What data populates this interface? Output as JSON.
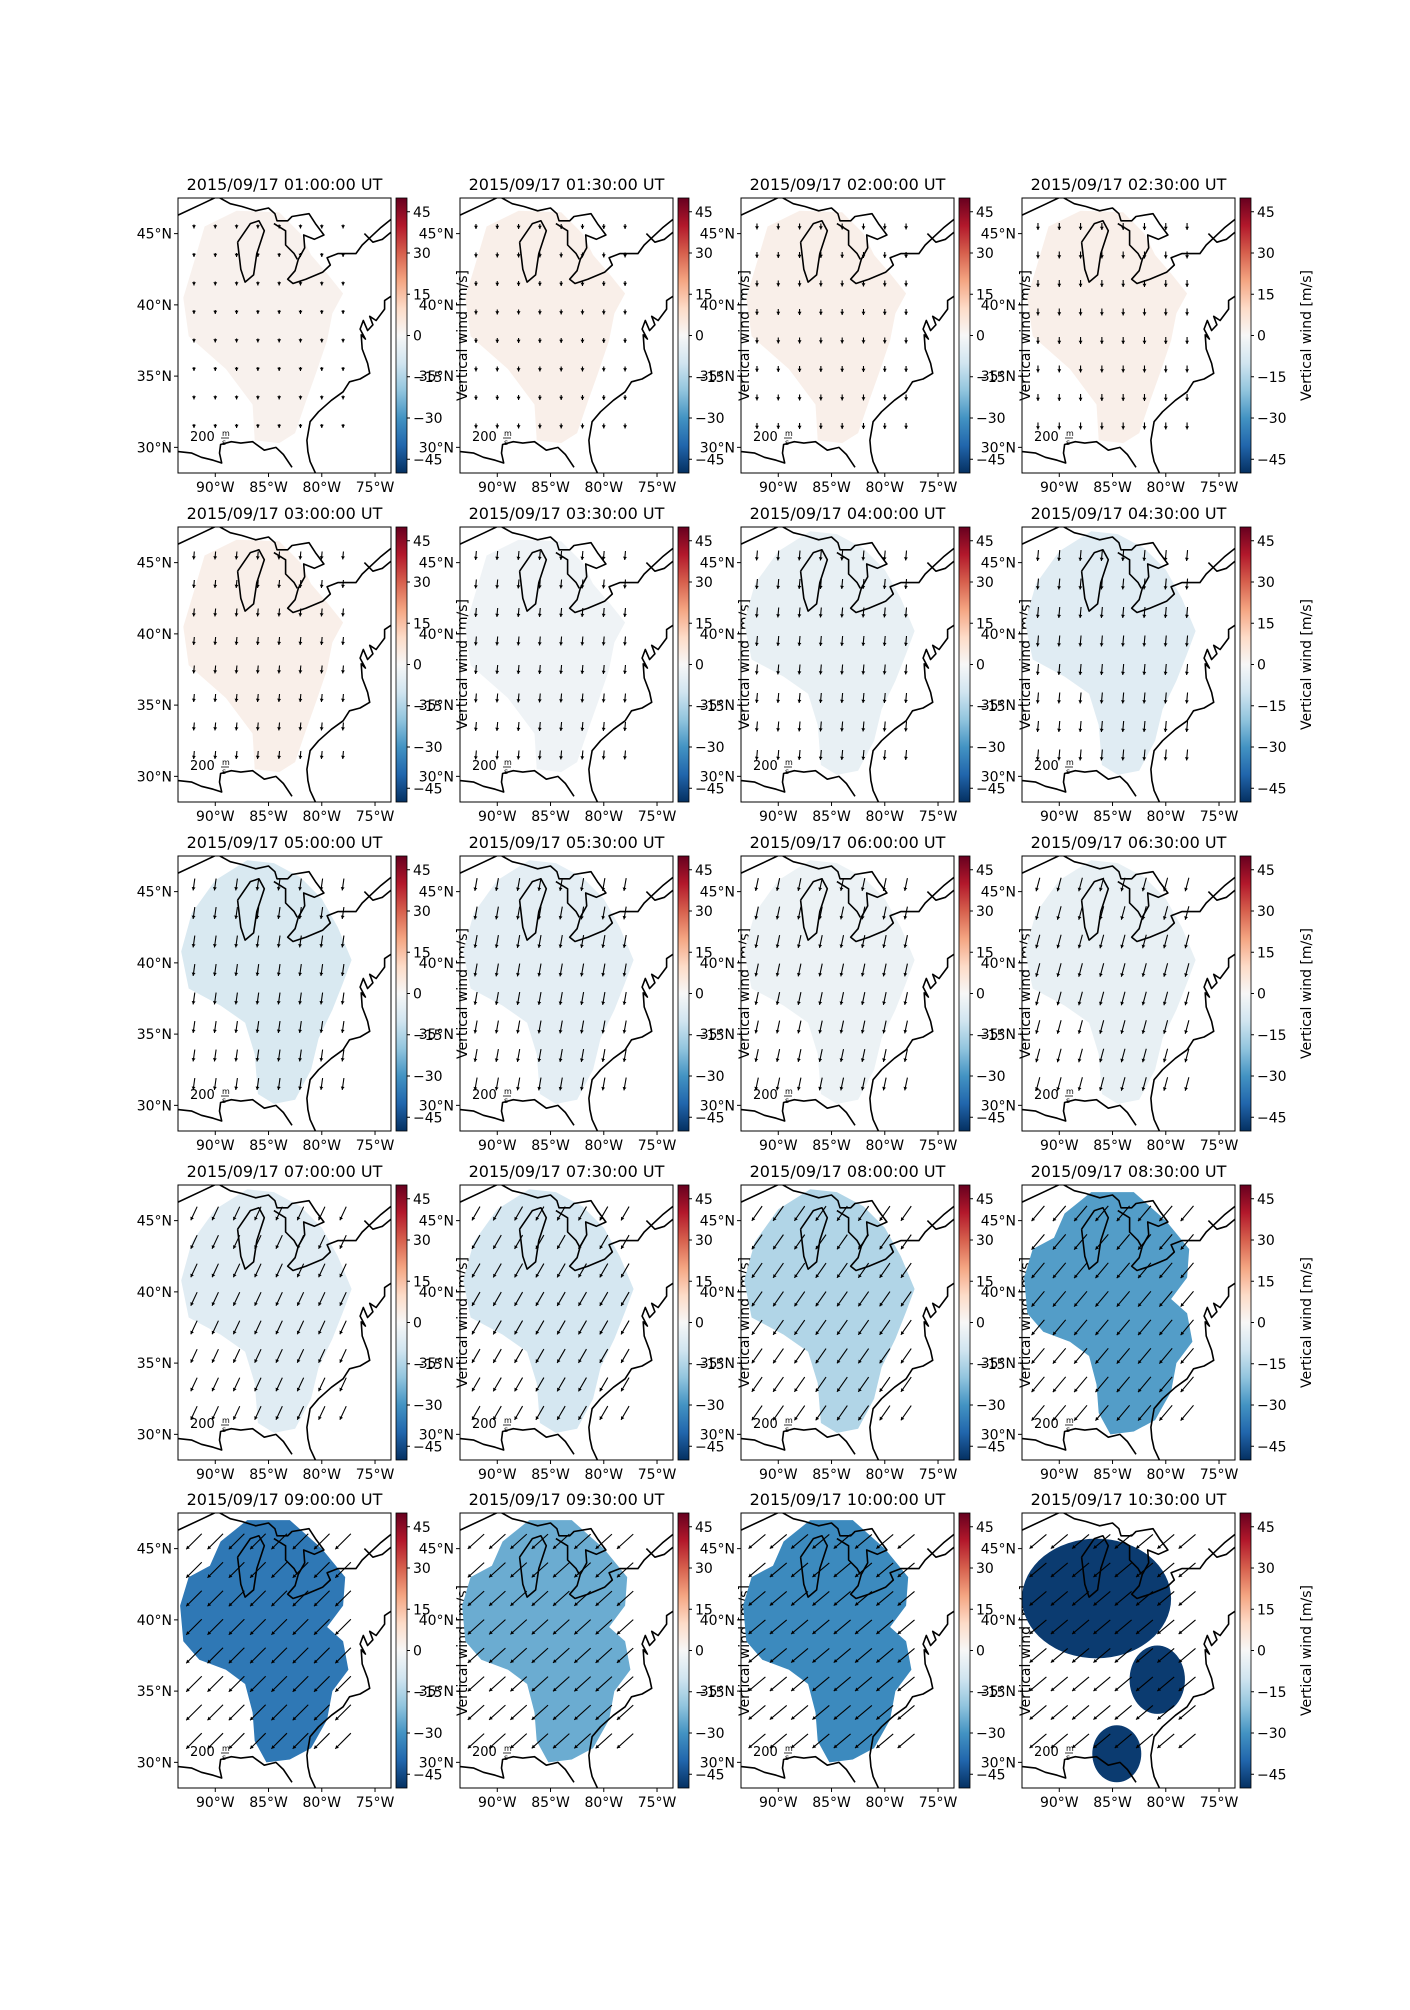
{
  "figure": {
    "colorbar": {
      "label": "Vertical wind [m/s]",
      "ticks": [
        "45",
        "30",
        "15",
        "0",
        "−15",
        "−30",
        "−45"
      ],
      "vmin": -50,
      "vmax": 50,
      "colormap": "RdBu_r"
    },
    "axes": {
      "x_ticks": [
        "90°W",
        "85°W",
        "80°W",
        "75°W"
      ],
      "y_ticks": [
        "45°N",
        "40°N",
        "35°N",
        "30°N"
      ]
    },
    "quiver_key": "200",
    "quiver_key_unit_num": "m",
    "quiver_key_unit_den": "s",
    "panels": [
      {
        "title": "2015/09/17 01:00:00 UT",
        "value": 2,
        "arrows": 4,
        "dir": 0,
        "shape": "north"
      },
      {
        "title": "2015/09/17 01:30:00 UT",
        "value": 3,
        "arrows": 5,
        "dir": 0,
        "shape": "north"
      },
      {
        "title": "2015/09/17 02:00:00 UT",
        "value": 3,
        "arrows": 6,
        "dir": 0,
        "shape": "north"
      },
      {
        "title": "2015/09/17 02:30:00 UT",
        "value": 3,
        "arrows": 7,
        "dir": 0,
        "shape": "north"
      },
      {
        "title": "2015/09/17 03:00:00 UT",
        "value": 3,
        "arrows": 8,
        "dir": 5,
        "shape": "north"
      },
      {
        "title": "2015/09/17 03:30:00 UT",
        "value": -2,
        "arrows": 9,
        "dir": 5,
        "shape": "north"
      },
      {
        "title": "2015/09/17 04:00:00 UT",
        "value": -4,
        "arrows": 10,
        "dir": 5,
        "shape": "east"
      },
      {
        "title": "2015/09/17 04:30:00 UT",
        "value": -6,
        "arrows": 11,
        "dir": 5,
        "shape": "east"
      },
      {
        "title": "2015/09/17 05:00:00 UT",
        "value": -8,
        "arrows": 12,
        "dir": 8,
        "shape": "east"
      },
      {
        "title": "2015/09/17 05:30:00 UT",
        "value": -5,
        "arrows": 13,
        "dir": 10,
        "shape": "east"
      },
      {
        "title": "2015/09/17 06:00:00 UT",
        "value": -3,
        "arrows": 13,
        "dir": 12,
        "shape": "east"
      },
      {
        "title": "2015/09/17 06:30:00 UT",
        "value": -4,
        "arrows": 14,
        "dir": 15,
        "shape": "east"
      },
      {
        "title": "2015/09/17 07:00:00 UT",
        "value": -6,
        "arrows": 15,
        "dir": 25,
        "shape": "east"
      },
      {
        "title": "2015/09/17 07:30:00 UT",
        "value": -9,
        "arrows": 16,
        "dir": 30,
        "shape": "east"
      },
      {
        "title": "2015/09/17 08:00:00 UT",
        "value": -15,
        "arrows": 18,
        "dir": 35,
        "shape": "east"
      },
      {
        "title": "2015/09/17 08:30:00 UT",
        "value": -28,
        "arrows": 20,
        "dir": 40,
        "shape": "lobe"
      },
      {
        "title": "2015/09/17 09:00:00 UT",
        "value": -36,
        "arrows": 22,
        "dir": 45,
        "shape": "lobe"
      },
      {
        "title": "2015/09/17 09:30:00 UT",
        "value": -25,
        "arrows": 22,
        "dir": 48,
        "shape": "lobe"
      },
      {
        "title": "2015/09/17 10:00:00 UT",
        "value": -32,
        "arrows": 22,
        "dir": 50,
        "shape": "lobe"
      },
      {
        "title": "2015/09/17 10:30:00 UT",
        "value": -48,
        "arrows": 22,
        "dir": 50,
        "shape": "blobs"
      }
    ]
  }
}
